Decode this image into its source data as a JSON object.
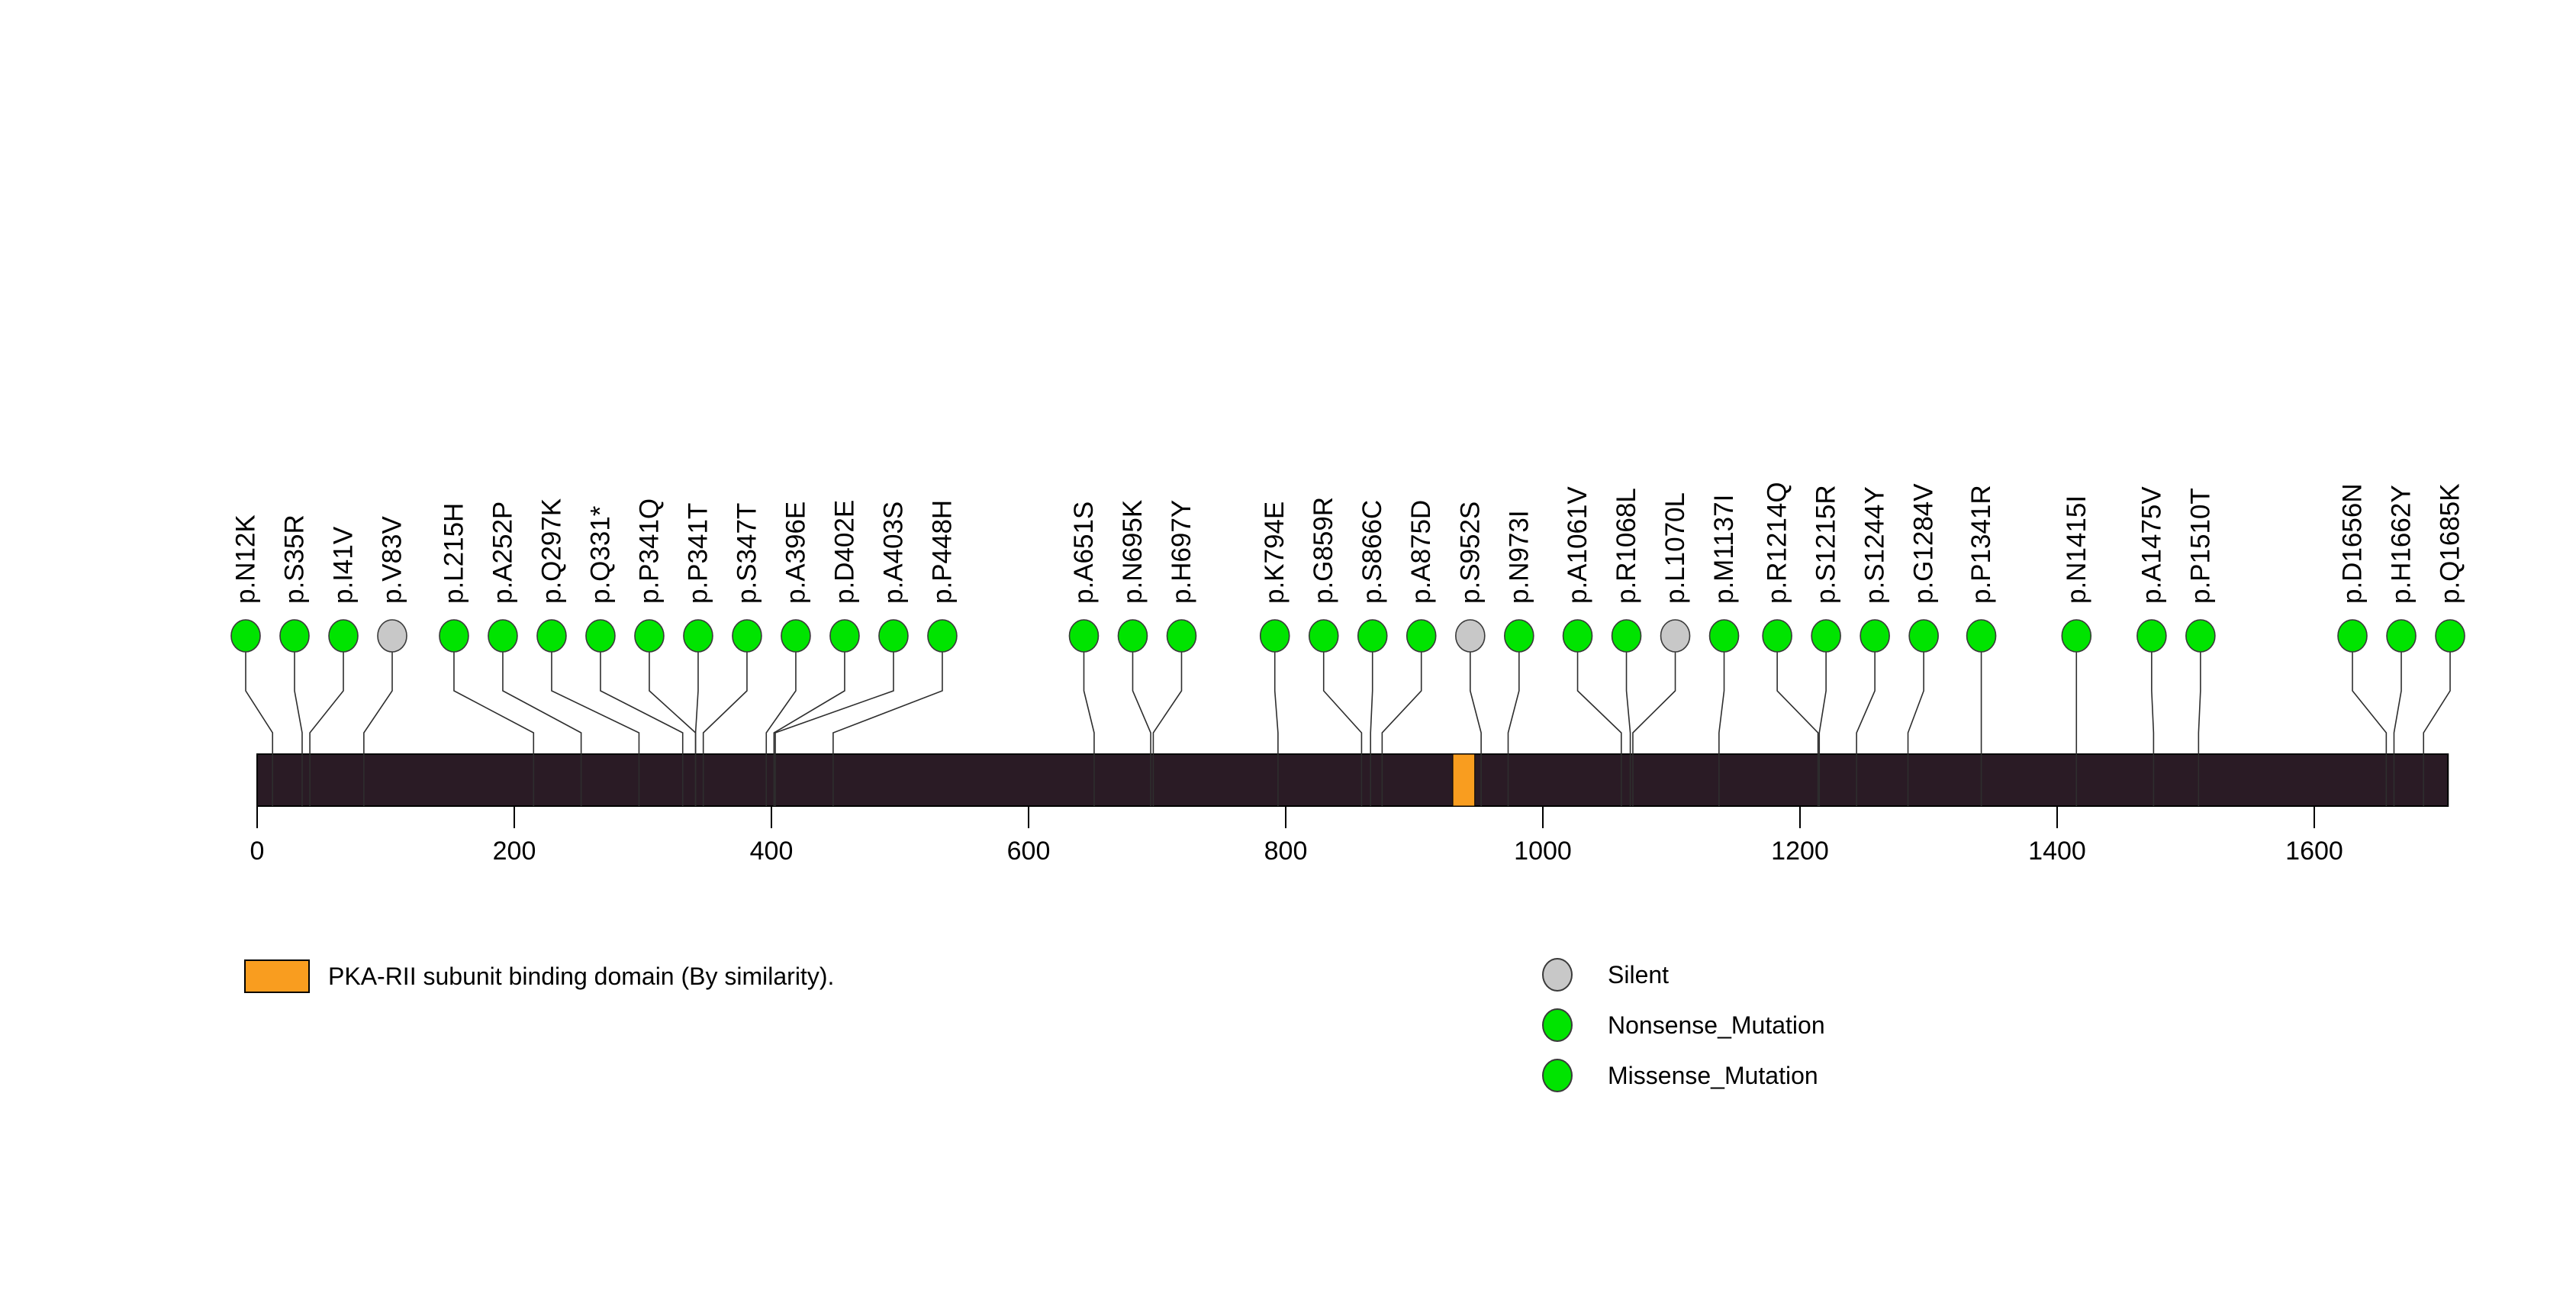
{
  "chart_data": {
    "type": "lollipop",
    "title": "",
    "protein_length": 1704,
    "axis_ticks": [
      0,
      200,
      400,
      600,
      800,
      1000,
      1200,
      1400,
      1600
    ],
    "domains": [
      {
        "name": "PKA-RII subunit binding domain (By similarity).",
        "start": 930,
        "end": 947,
        "color": "#f99d1f"
      }
    ],
    "variant_classes": {
      "Silent": "#c8c8c8",
      "Nonsense_Mutation": "#00e400",
      "Missense_Mutation": "#00e400"
    },
    "mutations": [
      {
        "label": "p.N12K",
        "pos": 12,
        "class": "Missense_Mutation"
      },
      {
        "label": "p.S35R",
        "pos": 35,
        "class": "Missense_Mutation"
      },
      {
        "label": "p.I41V",
        "pos": 41,
        "class": "Missense_Mutation"
      },
      {
        "label": "p.V83V",
        "pos": 83,
        "class": "Silent"
      },
      {
        "label": "p.L215H",
        "pos": 215,
        "class": "Missense_Mutation"
      },
      {
        "label": "p.A252P",
        "pos": 252,
        "class": "Missense_Mutation"
      },
      {
        "label": "p.Q297K",
        "pos": 297,
        "class": "Missense_Mutation"
      },
      {
        "label": "p.Q331*",
        "pos": 331,
        "class": "Nonsense_Mutation"
      },
      {
        "label": "p.P341Q",
        "pos": 341,
        "class": "Missense_Mutation"
      },
      {
        "label": "p.P341T",
        "pos": 341,
        "class": "Missense_Mutation"
      },
      {
        "label": "p.S347T",
        "pos": 347,
        "class": "Missense_Mutation"
      },
      {
        "label": "p.A396E",
        "pos": 396,
        "class": "Missense_Mutation"
      },
      {
        "label": "p.D402E",
        "pos": 402,
        "class": "Missense_Mutation"
      },
      {
        "label": "p.A403S",
        "pos": 403,
        "class": "Missense_Mutation"
      },
      {
        "label": "p.P448H",
        "pos": 448,
        "class": "Missense_Mutation"
      },
      {
        "label": "p.A651S",
        "pos": 651,
        "class": "Missense_Mutation"
      },
      {
        "label": "p.N695K",
        "pos": 695,
        "class": "Missense_Mutation"
      },
      {
        "label": "p.H697Y",
        "pos": 697,
        "class": "Missense_Mutation"
      },
      {
        "label": "p.K794E",
        "pos": 794,
        "class": "Missense_Mutation"
      },
      {
        "label": "p.G859R",
        "pos": 859,
        "class": "Missense_Mutation"
      },
      {
        "label": "p.S866C",
        "pos": 866,
        "class": "Missense_Mutation"
      },
      {
        "label": "p.A875D",
        "pos": 875,
        "class": "Missense_Mutation"
      },
      {
        "label": "p.S952S",
        "pos": 952,
        "class": "Silent"
      },
      {
        "label": "p.N973I",
        "pos": 973,
        "class": "Missense_Mutation"
      },
      {
        "label": "p.A1061V",
        "pos": 1061,
        "class": "Missense_Mutation"
      },
      {
        "label": "p.R1068L",
        "pos": 1068,
        "class": "Missense_Mutation"
      },
      {
        "label": "p.L1070L",
        "pos": 1070,
        "class": "Silent"
      },
      {
        "label": "p.M1137I",
        "pos": 1137,
        "class": "Missense_Mutation"
      },
      {
        "label": "p.R1214Q",
        "pos": 1214,
        "class": "Missense_Mutation"
      },
      {
        "label": "p.S1215R",
        "pos": 1215,
        "class": "Missense_Mutation"
      },
      {
        "label": "p.S1244Y",
        "pos": 1244,
        "class": "Missense_Mutation"
      },
      {
        "label": "p.G1284V",
        "pos": 1284,
        "class": "Missense_Mutation"
      },
      {
        "label": "p.P1341R",
        "pos": 1341,
        "class": "Missense_Mutation"
      },
      {
        "label": "p.N1415I",
        "pos": 1415,
        "class": "Missense_Mutation"
      },
      {
        "label": "p.A1475V",
        "pos": 1475,
        "class": "Missense_Mutation"
      },
      {
        "label": "p.P1510T",
        "pos": 1510,
        "class": "Missense_Mutation"
      },
      {
        "label": "p.D1656N",
        "pos": 1656,
        "class": "Missense_Mutation"
      },
      {
        "label": "p.H1662Y",
        "pos": 1662,
        "class": "Missense_Mutation"
      },
      {
        "label": "p.Q1685K",
        "pos": 1685,
        "class": "Missense_Mutation"
      }
    ]
  },
  "legend": {
    "domain_label": "PKA-RII subunit binding domain (By similarity).",
    "variant_classes": [
      {
        "label": "Silent",
        "color": "#c8c8c8"
      },
      {
        "label": "Nonsense_Mutation",
        "color": "#00e400"
      },
      {
        "label": "Missense_Mutation",
        "color": "#00e400"
      }
    ]
  },
  "colors": {
    "bar": "#2a1b25",
    "domain": "#f99d1f",
    "line": "#2e2e2e",
    "background": "#ffffff"
  }
}
